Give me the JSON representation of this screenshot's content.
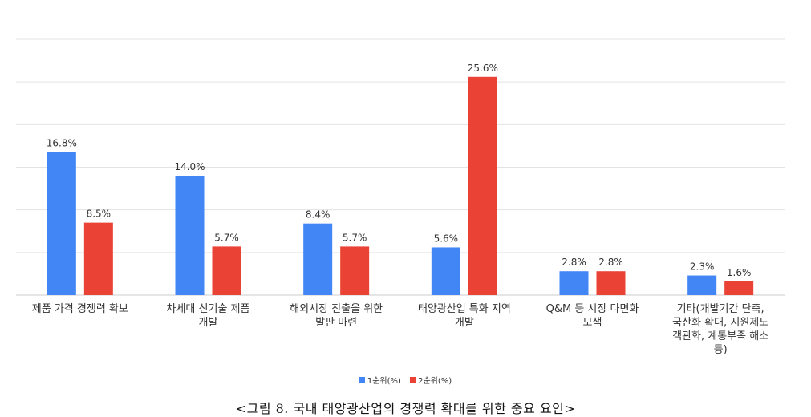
{
  "chart_data": {
    "type": "bar",
    "categories": [
      "제품 가격 경쟁력 확보",
      "차세대 신기술 제품\n개발",
      "해외시장 진출을 위한\n발판 마련",
      "태양광산업 특화 지역\n개발",
      "Q&M 등 시장 다면화\n모색",
      "기타(개발기간 단축,\n국산화 확대, 지원제도\n객관화, 계통부족 해소\n등)"
    ],
    "series": [
      {
        "name": "1순위(%)",
        "color": "#4285F4",
        "values": [
          16.8,
          14.0,
          8.4,
          5.6,
          2.8,
          2.3
        ],
        "labels": [
          "16.8%",
          "14.0%",
          "8.4%",
          "5.6%",
          "2.8%",
          "2.3%"
        ]
      },
      {
        "name": "2순위(%)",
        "color": "#EA4335",
        "values": [
          8.5,
          5.7,
          5.7,
          25.6,
          2.8,
          1.6
        ],
        "labels": [
          "8.5%",
          "5.7%",
          "5.7%",
          "25.6%",
          "2.8%",
          "1.6%"
        ]
      }
    ],
    "ylim": [
      0,
      30
    ],
    "grid": true,
    "legend_position": "bottom",
    "title": "",
    "xlabel": "",
    "ylabel": ""
  },
  "caption": "<그림 8. 국내 태양광산업의 경쟁력 확대를 위한 중요 요인>"
}
